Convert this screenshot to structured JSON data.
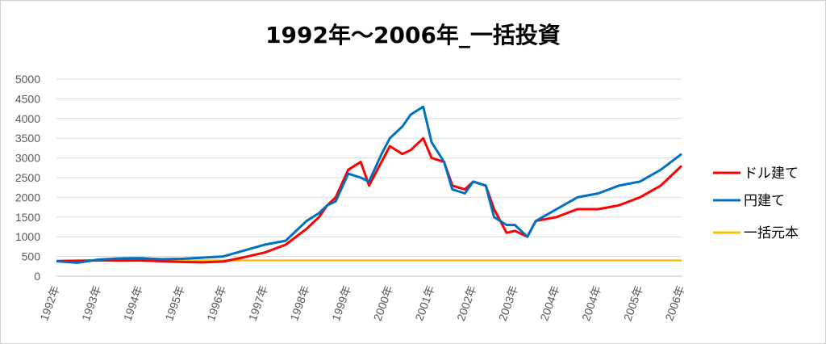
{
  "chart_data": {
    "type": "line",
    "title": "1992年～2006年_一括投資",
    "xlabel": "",
    "ylabel": "",
    "ylim": [
      0,
      5000
    ],
    "yticks": [
      0,
      500,
      1000,
      1500,
      2000,
      2500,
      3000,
      3500,
      4000,
      4500,
      5000
    ],
    "x_tick_labels": [
      "1992年",
      "1993年",
      "1994年",
      "1995年",
      "1996年",
      "1997年",
      "1998年",
      "1999年",
      "2000年",
      "2001年",
      "2002年",
      "2003年",
      "2004年",
      "2004年",
      "2005年",
      "2006年"
    ],
    "grid": true,
    "legend_position": "right",
    "x": [
      1992.0,
      1992.5,
      1993.0,
      1993.5,
      1994.0,
      1994.5,
      1995.0,
      1995.5,
      1996.0,
      1996.5,
      1997.0,
      1997.5,
      1998.0,
      1998.3,
      1998.5,
      1998.7,
      1999.0,
      1999.3,
      1999.5,
      1999.8,
      2000.0,
      2000.3,
      2000.5,
      2000.8,
      2001.0,
      2001.3,
      2001.5,
      2001.8,
      2002.0,
      2002.3,
      2002.5,
      2002.8,
      2003.0,
      2003.3,
      2003.5,
      2004.0,
      2004.5,
      2005.0,
      2005.5,
      2006.0,
      2006.5,
      2007.0
    ],
    "series": [
      {
        "name": "ドル建て",
        "color": "#ff0000",
        "values": [
          380,
          390,
          400,
          395,
          400,
          380,
          360,
          350,
          370,
          480,
          600,
          800,
          1200,
          1500,
          1800,
          2000,
          2700,
          2900,
          2300,
          2900,
          3300,
          3100,
          3200,
          3500,
          3000,
          2900,
          2300,
          2200,
          2400,
          2300,
          1700,
          1100,
          1150,
          1000,
          1400,
          1500,
          1700,
          1700,
          1800,
          2000,
          2300,
          2800
        ]
      },
      {
        "name": "円建て",
        "color": "#0070c0",
        "values": [
          380,
          340,
          420,
          450,
          460,
          430,
          440,
          470,
          500,
          650,
          800,
          900,
          1400,
          1600,
          1800,
          1900,
          2600,
          2500,
          2400,
          3100,
          3500,
          3800,
          4100,
          4300,
          3400,
          2900,
          2200,
          2100,
          2400,
          2300,
          1500,
          1300,
          1300,
          1000,
          1400,
          1700,
          2000,
          2100,
          2300,
          2400,
          2700,
          3100
        ]
      },
      {
        "name": "一括元本",
        "color": "#ffc000",
        "values": [
          400,
          400,
          400,
          400,
          400,
          400,
          400,
          400,
          400,
          400,
          400,
          400,
          400,
          400,
          400,
          400,
          400,
          400,
          400,
          400,
          400,
          400,
          400,
          400,
          400,
          400,
          400,
          400,
          400,
          400,
          400,
          400,
          400,
          400,
          400,
          400,
          400,
          400,
          400,
          400,
          400,
          400
        ]
      }
    ]
  }
}
